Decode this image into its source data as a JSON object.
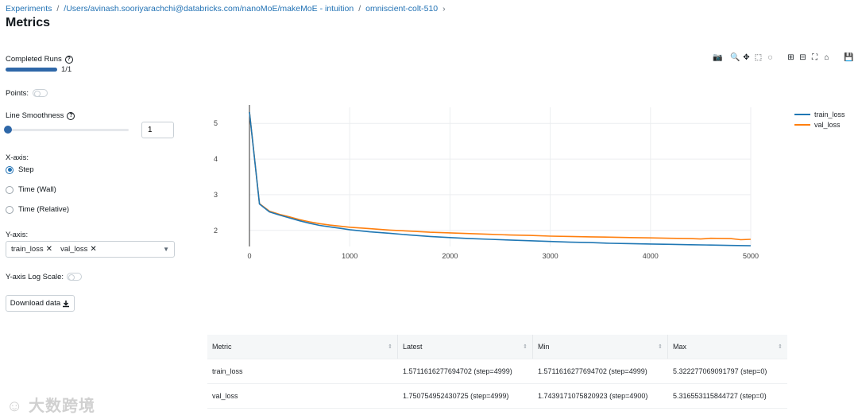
{
  "breadcrumb": {
    "items": [
      "Experiments",
      "/Users/avinash.sooriyarachchi@databricks.com/nanoMoE/makeMoE - intuition",
      "omniscient-colt-510"
    ],
    "separator": "/",
    "trailing_chevron": "›"
  },
  "page": {
    "title": "Metrics"
  },
  "controls": {
    "completed_runs_label": "Completed Runs",
    "completed_runs_value": "1/1",
    "completed_runs_fraction": 1.0,
    "points_label": "Points:",
    "points_enabled": false,
    "line_smoothness_label": "Line Smoothness",
    "line_smoothness_value": "1",
    "xaxis_label": "X-axis:",
    "xaxis_options": [
      "Step",
      "Time (Wall)",
      "Time (Relative)"
    ],
    "xaxis_selected": "Step",
    "yaxis_label": "Y-axis:",
    "yaxis_selected": [
      "train_loss",
      "val_loss"
    ],
    "yaxis_log_label": "Y-axis Log Scale:",
    "yaxis_log_enabled": false,
    "download_label": "Download data"
  },
  "modebar_icons": [
    "camera-icon",
    "zoom-icon",
    "pan-icon",
    "box-select-icon",
    "lasso-icon",
    "zoom-in-icon",
    "zoom-out-icon",
    "autoscale-icon",
    "home-icon",
    "save-icon"
  ],
  "chart_data": {
    "type": "line",
    "xlabel": "",
    "ylabel": "",
    "xlim": [
      0,
      5000
    ],
    "ylim": [
      1.55,
      5.45
    ],
    "xticks": [
      0,
      1000,
      2000,
      3000,
      4000,
      5000
    ],
    "yticks": [
      2,
      3,
      4,
      5
    ],
    "grid": true,
    "legend_position": "top-right",
    "series": [
      {
        "name": "train_loss",
        "color": "#1f77b4",
        "x": [
          0,
          100,
          200,
          300,
          400,
          500,
          600,
          700,
          800,
          900,
          1000,
          1200,
          1400,
          1600,
          1800,
          2000,
          2200,
          2400,
          2600,
          2800,
          3000,
          3200,
          3400,
          3600,
          3800,
          4000,
          4200,
          4400,
          4600,
          4800,
          4999
        ],
        "y": [
          5.32,
          2.74,
          2.52,
          2.43,
          2.35,
          2.27,
          2.2,
          2.14,
          2.1,
          2.06,
          2.02,
          1.96,
          1.92,
          1.87,
          1.83,
          1.8,
          1.77,
          1.75,
          1.73,
          1.71,
          1.69,
          1.67,
          1.66,
          1.64,
          1.63,
          1.62,
          1.61,
          1.6,
          1.59,
          1.58,
          1.57
        ]
      },
      {
        "name": "val_loss",
        "color": "#ff7f0e",
        "x": [
          0,
          100,
          200,
          300,
          400,
          500,
          600,
          700,
          800,
          900,
          1000,
          1200,
          1400,
          1600,
          1800,
          2000,
          2200,
          2400,
          2600,
          2800,
          3000,
          3200,
          3400,
          3600,
          3800,
          4000,
          4200,
          4400,
          4500,
          4600,
          4800,
          4900,
          4999
        ],
        "y": [
          5.32,
          2.75,
          2.54,
          2.45,
          2.38,
          2.3,
          2.24,
          2.19,
          2.15,
          2.12,
          2.09,
          2.05,
          2.01,
          1.98,
          1.95,
          1.93,
          1.91,
          1.89,
          1.87,
          1.86,
          1.84,
          1.83,
          1.82,
          1.81,
          1.8,
          1.79,
          1.78,
          1.77,
          1.76,
          1.78,
          1.77,
          1.74,
          1.75
        ]
      }
    ]
  },
  "table": {
    "headers": [
      "Metric",
      "Latest",
      "Min",
      "Max"
    ],
    "rows": [
      [
        "train_loss",
        "1.5711616277694702 (step=4999)",
        "1.5711616277694702 (step=4999)",
        "5.322277069091797 (step=0)"
      ],
      [
        "val_loss",
        "1.750754952430725 (step=4999)",
        "1.7439171075820923 (step=4900)",
        "5.316553115844727 (step=0)"
      ]
    ]
  },
  "watermark": {
    "text": "大数跨境"
  }
}
